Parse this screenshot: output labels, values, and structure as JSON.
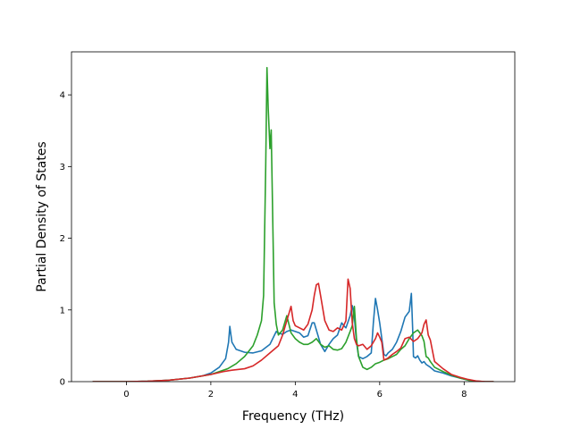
{
  "chart_data": {
    "type": "line",
    "title": "",
    "xlabel": "Frequency (THz)",
    "ylabel": "Partial Density of States",
    "xlim": [
      -1.3,
      9.2
    ],
    "ylim": [
      0,
      4.6
    ],
    "xticks": [
      0,
      2,
      4,
      6,
      8
    ],
    "yticks": [
      0,
      1,
      2,
      3,
      4
    ],
    "grid": false,
    "legend": "none",
    "series": [
      {
        "color": "#1f77b4",
        "x": [
          -0.8,
          0,
          0.5,
          1.0,
          1.5,
          1.8,
          2.0,
          2.2,
          2.35,
          2.42,
          2.45,
          2.5,
          2.6,
          2.8,
          3.0,
          3.2,
          3.4,
          3.55,
          3.6,
          3.7,
          3.8,
          3.9,
          4.0,
          4.1,
          4.2,
          4.3,
          4.4,
          4.45,
          4.5,
          4.6,
          4.7,
          4.8,
          4.9,
          5.0,
          5.1,
          5.15,
          5.2,
          5.3,
          5.35,
          5.4,
          5.45,
          5.5,
          5.6,
          5.7,
          5.8,
          5.85,
          5.9,
          5.95,
          6.0,
          6.05,
          6.1,
          6.15,
          6.2,
          6.3,
          6.4,
          6.5,
          6.6,
          6.7,
          6.75,
          6.78,
          6.8,
          6.85,
          6.9,
          6.95,
          7.0,
          7.05,
          7.1,
          7.2,
          7.3,
          7.5,
          7.7,
          7.9,
          8.1,
          8.3,
          8.5,
          8.7
        ],
        "y": [
          0,
          0,
          0.005,
          0.02,
          0.05,
          0.08,
          0.12,
          0.2,
          0.32,
          0.55,
          0.77,
          0.55,
          0.45,
          0.41,
          0.4,
          0.43,
          0.52,
          0.7,
          0.68,
          0.66,
          0.7,
          0.72,
          0.7,
          0.68,
          0.62,
          0.64,
          0.82,
          0.82,
          0.72,
          0.52,
          0.42,
          0.52,
          0.6,
          0.65,
          0.82,
          0.78,
          0.75,
          0.92,
          1.06,
          0.9,
          0.55,
          0.35,
          0.32,
          0.35,
          0.4,
          0.82,
          1.16,
          1.0,
          0.82,
          0.6,
          0.38,
          0.36,
          0.4,
          0.45,
          0.55,
          0.7,
          0.9,
          0.98,
          1.23,
          0.75,
          0.35,
          0.33,
          0.36,
          0.3,
          0.26,
          0.28,
          0.24,
          0.2,
          0.15,
          0.12,
          0.08,
          0.05,
          0.02,
          0.005,
          0,
          0
        ]
      },
      {
        "color": "#2ca02c",
        "x": [
          -0.8,
          0,
          0.5,
          1.0,
          1.5,
          2.0,
          2.4,
          2.6,
          2.8,
          3.0,
          3.1,
          3.2,
          3.25,
          3.3,
          3.33,
          3.36,
          3.4,
          3.43,
          3.46,
          3.5,
          3.55,
          3.6,
          3.7,
          3.8,
          3.85,
          3.9,
          4.0,
          4.1,
          4.2,
          4.3,
          4.4,
          4.5,
          4.6,
          4.7,
          4.8,
          4.9,
          5.0,
          5.1,
          5.2,
          5.3,
          5.35,
          5.4,
          5.45,
          5.5,
          5.6,
          5.7,
          5.8,
          5.9,
          6.0,
          6.1,
          6.2,
          6.3,
          6.4,
          6.5,
          6.6,
          6.7,
          6.8,
          6.9,
          7.0,
          7.05,
          7.1,
          7.15,
          7.2,
          7.3,
          7.5,
          7.7,
          7.9,
          8.1,
          8.3,
          8.5,
          8.7
        ],
        "y": [
          0,
          0,
          0.005,
          0.02,
          0.05,
          0.1,
          0.18,
          0.25,
          0.35,
          0.5,
          0.65,
          0.85,
          1.2,
          3.0,
          4.38,
          3.8,
          3.25,
          3.51,
          2.5,
          1.1,
          0.8,
          0.65,
          0.72,
          0.92,
          0.8,
          0.68,
          0.6,
          0.55,
          0.52,
          0.52,
          0.55,
          0.6,
          0.52,
          0.48,
          0.5,
          0.45,
          0.44,
          0.46,
          0.55,
          0.7,
          0.78,
          1.05,
          0.6,
          0.35,
          0.2,
          0.17,
          0.2,
          0.25,
          0.27,
          0.3,
          0.32,
          0.35,
          0.38,
          0.45,
          0.5,
          0.6,
          0.68,
          0.72,
          0.64,
          0.56,
          0.35,
          0.33,
          0.28,
          0.2,
          0.14,
          0.09,
          0.05,
          0.02,
          0.005,
          0,
          0
        ]
      },
      {
        "color": "#d62728",
        "x": [
          -0.8,
          0,
          0.5,
          1.0,
          1.5,
          2.0,
          2.3,
          2.5,
          2.8,
          3.0,
          3.2,
          3.4,
          3.6,
          3.7,
          3.8,
          3.85,
          3.9,
          3.95,
          4.0,
          4.1,
          4.2,
          4.3,
          4.4,
          4.45,
          4.5,
          4.55,
          4.6,
          4.7,
          4.8,
          4.9,
          5.0,
          5.1,
          5.2,
          5.25,
          5.3,
          5.35,
          5.4,
          5.45,
          5.5,
          5.6,
          5.7,
          5.8,
          5.9,
          5.95,
          6.0,
          6.05,
          6.1,
          6.2,
          6.3,
          6.4,
          6.5,
          6.6,
          6.7,
          6.8,
          6.9,
          7.0,
          7.05,
          7.1,
          7.15,
          7.2,
          7.3,
          7.5,
          7.7,
          7.9,
          8.1,
          8.3,
          8.5,
          8.7
        ],
        "y": [
          0,
          0,
          0.005,
          0.02,
          0.05,
          0.1,
          0.14,
          0.16,
          0.18,
          0.22,
          0.3,
          0.4,
          0.5,
          0.65,
          0.85,
          0.95,
          1.05,
          0.85,
          0.78,
          0.75,
          0.72,
          0.8,
          1.0,
          1.2,
          1.35,
          1.37,
          1.2,
          0.85,
          0.72,
          0.7,
          0.75,
          0.72,
          0.85,
          1.43,
          1.3,
          0.82,
          0.6,
          0.52,
          0.5,
          0.52,
          0.45,
          0.5,
          0.6,
          0.68,
          0.62,
          0.55,
          0.3,
          0.33,
          0.38,
          0.42,
          0.47,
          0.6,
          0.62,
          0.56,
          0.6,
          0.68,
          0.8,
          0.86,
          0.65,
          0.58,
          0.28,
          0.18,
          0.1,
          0.06,
          0.03,
          0.008,
          0,
          0
        ]
      }
    ]
  }
}
